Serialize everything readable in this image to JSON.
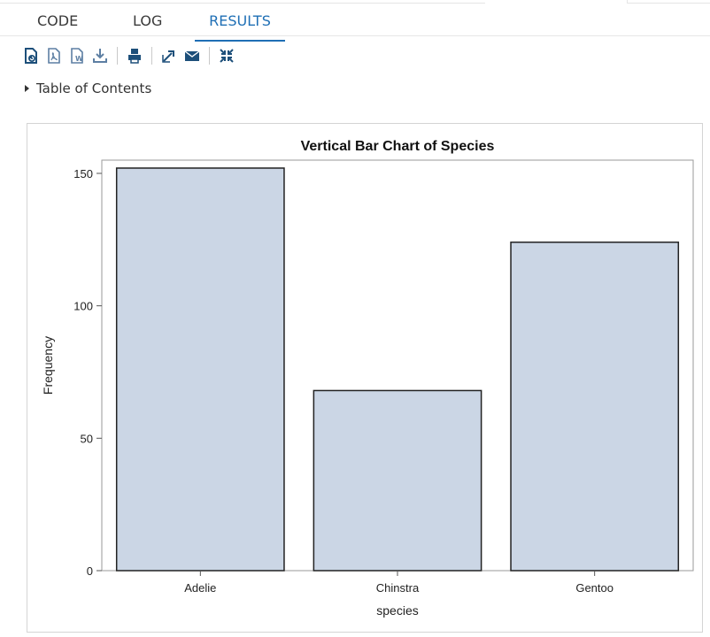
{
  "tabs": [
    {
      "label": "CODE"
    },
    {
      "label": "LOG"
    },
    {
      "label": "RESULTS",
      "active": true
    }
  ],
  "toolbar": {
    "icons": [
      "document-refresh-icon",
      "pdf-export-icon",
      "word-export-icon",
      "download-icon",
      "print-icon",
      "expand-icon",
      "email-icon",
      "collapse-icon"
    ]
  },
  "toc": {
    "label": "Table of Contents"
  },
  "colors": {
    "accent": "#1f6fb5",
    "bar_fill": "#cbd6e5",
    "bar_stroke": "#222222"
  },
  "chart_data": {
    "type": "bar",
    "title": "Vertical Bar Chart of Species",
    "xlabel": "species",
    "ylabel": "Frequency",
    "categories": [
      "Adelie",
      "Chinstra",
      "Gentoo"
    ],
    "values": [
      152,
      68,
      124
    ],
    "ylim": [
      0,
      155
    ],
    "yticks": [
      0,
      50,
      100,
      150
    ],
    "grid": false
  }
}
